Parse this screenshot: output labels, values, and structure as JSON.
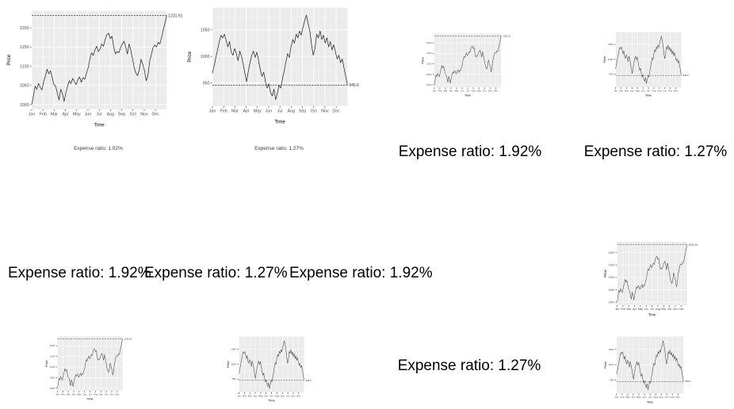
{
  "page": {
    "background": "#ffffff"
  },
  "colors": {
    "panel_bg": "#ebebeb",
    "grid_major": "#ffffff",
    "grid_minor": "#f5f5f5",
    "series_line": "#1a1a1a",
    "ref_line": "#333333",
    "tick_text": "#4d4d4d",
    "axis_title": "#000000",
    "big_text": "#000000"
  },
  "labels": {
    "caption_a": "Expense ratio: 1.92%",
    "caption_b": "Expense ratio: 1.27%",
    "top_text_a": "Expense ratio: 1.92%",
    "top_text_b": "Expense ratio: 1.27%",
    "mid_text_1": "Expense ratio: 1.92%",
    "mid_text_2": "Expense ratio: 1.27%",
    "mid_text_3": "Expense ratio: 1.92%",
    "bottom_text": "Expense ratio: 1.27%"
  },
  "chart_data": [
    {
      "id": "fund_a",
      "type": "line",
      "title": "",
      "xlabel": "Time",
      "ylabel": "Price",
      "x_tick_labels": [
        "Jan",
        "Feb",
        "Mar",
        "Apr",
        "May",
        "Jun",
        "Jul",
        "Aug",
        "Sep",
        "Oct",
        "Nov",
        "Dec"
      ],
      "y_ticks": [
        1000,
        1050,
        1100,
        1150,
        1200
      ],
      "ylim": [
        988,
        1244
      ],
      "grid": true,
      "final_price_line": {
        "value": 1231.91,
        "label": "1231.91",
        "style": "dashed"
      },
      "expense_ratio": "1.92%",
      "values": [
        1000,
        1022,
        1048,
        1040,
        1055,
        1045,
        1038,
        1060,
        1075,
        1092,
        1080,
        1088,
        1070,
        1052,
        1048,
        1030,
        1012,
        1040,
        1028,
        1008,
        1032,
        1048,
        1062,
        1055,
        1068,
        1060,
        1052,
        1065,
        1072,
        1058,
        1070,
        1066,
        1080,
        1095,
        1118,
        1135,
        1128,
        1142,
        1152,
        1138,
        1145,
        1158,
        1152,
        1170,
        1182,
        1186,
        1172,
        1178,
        1150,
        1132,
        1138,
        1135,
        1148,
        1158,
        1165,
        1150,
        1132,
        1158,
        1142,
        1120,
        1095,
        1082,
        1075,
        1092,
        1118,
        1105,
        1088,
        1062,
        1075,
        1112,
        1130,
        1148,
        1155,
        1150,
        1162,
        1158,
        1175,
        1195,
        1212,
        1231.91
      ]
    },
    {
      "id": "fund_b",
      "type": "line",
      "title": "",
      "xlabel": "Time",
      "ylabel": "Price",
      "x_tick_labels": [
        "Jan",
        "Feb",
        "Mar",
        "Apr",
        "May",
        "Jun",
        "Jul",
        "Aug",
        "Sep",
        "Oct",
        "Nov",
        "Dec"
      ],
      "y_ticks": [
        950,
        1000,
        1050
      ],
      "ylim": [
        906,
        1092
      ],
      "grid": true,
      "final_price_line": {
        "value": 945.6,
        "label": "945.6",
        "style": "dashed"
      },
      "expense_ratio": "1.27%",
      "values": [
        968,
        982,
        998,
        1012,
        1028,
        1040,
        1035,
        1042,
        1030,
        1018,
        1028,
        1008,
        1002,
        1015,
        1005,
        992,
        1010,
        1000,
        985,
        968,
        952,
        972,
        988,
        1002,
        1010,
        998,
        1008,
        992,
        975,
        962,
        970,
        952,
        940,
        948,
        932,
        925,
        938,
        918,
        930,
        945,
        940,
        958,
        972,
        990,
        1005,
        998,
        1018,
        1032,
        1025,
        1042,
        1035,
        1048,
        1040,
        1055,
        1068,
        1078,
        1062,
        1048,
        1022,
        1002,
        1015,
        1042,
        1035,
        1048,
        1032,
        1040,
        1025,
        1035,
        1018,
        1028,
        1012,
        1022,
        1008,
        995,
        1002,
        988,
        995,
        978,
        962,
        945.6
      ]
    }
  ]
}
